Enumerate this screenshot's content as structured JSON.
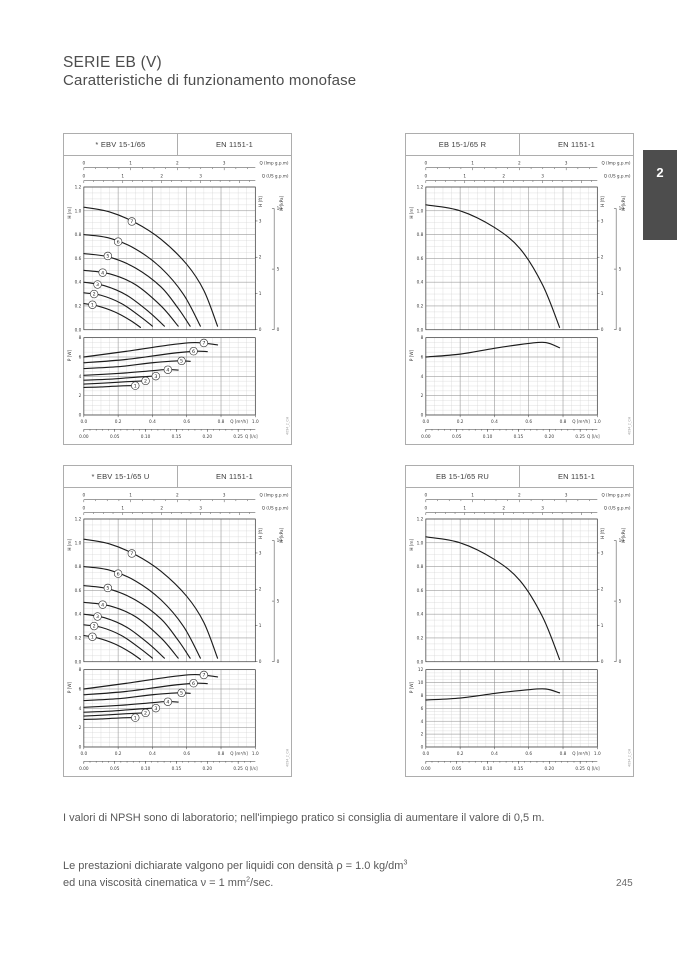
{
  "page": {
    "title": "SERIE EB (V)",
    "subtitle": "Caratteristiche di funzionamento monofase",
    "section_tab": "2",
    "page_number": "245",
    "notes": {
      "npsh": "I valori di NPSH sono di laboratorio; nell'impiego pratico si consiglia di aumentare il valore di 0,5 m.",
      "density_part1": "Le prestazioni dichiarate valgono per liquidi con densità ρ = 1.0 kg/dm",
      "density_sup": "3",
      "viscosity_part1": "ed una viscosità cinematica ν = 1 mm",
      "viscosity_sup": "2",
      "viscosity_part2": "/sec."
    }
  },
  "axes_shared": {
    "top_imp": {
      "label": "Q (Imp g.p.m)",
      "ticks": [
        0,
        1,
        2,
        3
      ],
      "to_m3h": 0.2728
    },
    "top_us": {
      "label": "Q (US g.p.m)",
      "ticks": [
        0,
        1,
        2,
        3
      ],
      "to_m3h": 0.2271
    },
    "right_ft": {
      "label": "H [ft]",
      "ticks": [
        0,
        1,
        2,
        3
      ],
      "to_m": 0.3048
    },
    "right_kpa": {
      "label": "H [kPa]",
      "ticks": [
        0,
        5,
        10
      ],
      "to_m": 0.10197
    },
    "bottom_ls": {
      "label": "Q [l/s]",
      "ticks": [
        0,
        0.05,
        0.1,
        0.15,
        0.2,
        0.25
      ],
      "to_m3h": 3.6
    }
  },
  "chart_data": [
    {
      "type": "line",
      "model": "* EBV 15-1/65",
      "standard": "EN 1151-1",
      "code": "4094_2_CH",
      "x": {
        "label": "Q [m³/h]",
        "min": 0,
        "max": 1.0,
        "ticks": [
          0,
          0.2,
          0.4,
          0.6,
          0.8,
          1.0
        ]
      },
      "y_h": {
        "label": "H [m]",
        "min": 0,
        "max": 1.2,
        "ticks": [
          0,
          0.2,
          0.4,
          0.6,
          0.8,
          1.0,
          1.2
        ]
      },
      "y_p": {
        "label": "P [W]",
        "min": 0,
        "max": 8,
        "ticks": [
          0,
          2,
          4,
          6,
          8
        ]
      },
      "h_curves": [
        {
          "label": "7",
          "points": [
            [
              0,
              1.03
            ],
            [
              0.15,
              0.99
            ],
            [
              0.3,
              0.9
            ],
            [
              0.45,
              0.76
            ],
            [
              0.6,
              0.55
            ],
            [
              0.7,
              0.33
            ],
            [
              0.78,
              0.03
            ]
          ],
          "label_at": [
            0.28,
            0.91
          ]
        },
        {
          "label": "6",
          "points": [
            [
              0,
              0.8
            ],
            [
              0.15,
              0.77
            ],
            [
              0.3,
              0.68
            ],
            [
              0.45,
              0.52
            ],
            [
              0.58,
              0.3
            ],
            [
              0.68,
              0.03
            ]
          ],
          "label_at": [
            0.2,
            0.74
          ]
        },
        {
          "label": "5",
          "points": [
            [
              0,
              0.64
            ],
            [
              0.15,
              0.61
            ],
            [
              0.3,
              0.52
            ],
            [
              0.45,
              0.36
            ],
            [
              0.55,
              0.18
            ],
            [
              0.62,
              0.03
            ]
          ],
          "label_at": [
            0.14,
            0.62
          ]
        },
        {
          "label": "4",
          "points": [
            [
              0,
              0.5
            ],
            [
              0.15,
              0.47
            ],
            [
              0.3,
              0.38
            ],
            [
              0.45,
              0.2
            ],
            [
              0.55,
              0.03
            ]
          ],
          "label_at": [
            0.11,
            0.48
          ]
        },
        {
          "label": "3",
          "points": [
            [
              0,
              0.4
            ],
            [
              0.12,
              0.37
            ],
            [
              0.25,
              0.29
            ],
            [
              0.38,
              0.15
            ],
            [
              0.47,
              0.03
            ]
          ],
          "label_at": [
            0.08,
            0.38
          ]
        },
        {
          "label": "2",
          "points": [
            [
              0,
              0.31
            ],
            [
              0.1,
              0.29
            ],
            [
              0.22,
              0.22
            ],
            [
              0.33,
              0.11
            ],
            [
              0.4,
              0.03
            ]
          ],
          "label_at": [
            0.06,
            0.3
          ]
        },
        {
          "label": "1",
          "points": [
            [
              0,
              0.22
            ],
            [
              0.08,
              0.2
            ],
            [
              0.18,
              0.15
            ],
            [
              0.27,
              0.08
            ],
            [
              0.33,
              0.02
            ]
          ],
          "label_at": [
            0.05,
            0.21
          ]
        }
      ],
      "p_curves": [
        {
          "label": "7",
          "points": [
            [
              0,
              6.0
            ],
            [
              0.25,
              6.6
            ],
            [
              0.5,
              7.25
            ],
            [
              0.65,
              7.5
            ],
            [
              0.78,
              7.25
            ]
          ],
          "label_at": [
            0.7,
            7.45
          ]
        },
        {
          "label": "6",
          "points": [
            [
              0,
              5.4
            ],
            [
              0.25,
              5.75
            ],
            [
              0.5,
              6.35
            ],
            [
              0.65,
              6.6
            ],
            [
              0.72,
              6.55
            ]
          ],
          "label_at": [
            0.64,
            6.6
          ]
        },
        {
          "label": "5",
          "points": [
            [
              0,
              4.8
            ],
            [
              0.2,
              5.0
            ],
            [
              0.4,
              5.4
            ],
            [
              0.55,
              5.6
            ],
            [
              0.62,
              5.55
            ]
          ],
          "label_at": [
            0.57,
            5.6
          ]
        },
        {
          "label": "4",
          "points": [
            [
              0,
              4.1
            ],
            [
              0.2,
              4.3
            ],
            [
              0.35,
              4.5
            ],
            [
              0.48,
              4.7
            ],
            [
              0.55,
              4.65
            ]
          ],
          "label_at": [
            0.49,
            4.68
          ]
        },
        {
          "label": "3",
          "points": [
            [
              0,
              3.6
            ],
            [
              0.15,
              3.7
            ],
            [
              0.3,
              3.9
            ],
            [
              0.43,
              4.05
            ]
          ],
          "label_at": [
            0.42,
            4.02
          ]
        },
        {
          "label": "2",
          "points": [
            [
              0,
              3.2
            ],
            [
              0.12,
              3.3
            ],
            [
              0.25,
              3.45
            ],
            [
              0.38,
              3.55
            ]
          ],
          "label_at": [
            0.36,
            3.53
          ]
        },
        {
          "label": "1",
          "points": [
            [
              0,
              2.85
            ],
            [
              0.1,
              2.9
            ],
            [
              0.2,
              3.0
            ],
            [
              0.32,
              3.05
            ]
          ],
          "label_at": [
            0.3,
            3.03
          ]
        }
      ]
    },
    {
      "type": "line",
      "model": "EB 15-1/65 R",
      "standard": "EN 1151-1",
      "code": "4094_2_CH",
      "x": {
        "label": "Q [m³/h]",
        "min": 0,
        "max": 1.0,
        "ticks": [
          0,
          0.2,
          0.4,
          0.6,
          0.8,
          1.0
        ]
      },
      "y_h": {
        "label": "H [m]",
        "min": 0,
        "max": 1.2,
        "ticks": [
          0,
          0.2,
          0.4,
          0.6,
          0.8,
          1.0,
          1.2
        ]
      },
      "y_p": {
        "label": "P [W]",
        "min": 0,
        "max": 8,
        "ticks": [
          0,
          2,
          4,
          6,
          8
        ]
      },
      "h_curves": [
        {
          "points": [
            [
              0,
              1.05
            ],
            [
              0.2,
              1.0
            ],
            [
              0.4,
              0.86
            ],
            [
              0.55,
              0.68
            ],
            [
              0.68,
              0.38
            ],
            [
              0.78,
              0.02
            ]
          ]
        }
      ],
      "p_curves": [
        {
          "points": [
            [
              0,
              6.0
            ],
            [
              0.2,
              6.3
            ],
            [
              0.4,
              6.9
            ],
            [
              0.6,
              7.4
            ],
            [
              0.7,
              7.5
            ],
            [
              0.78,
              6.95
            ]
          ]
        }
      ]
    },
    {
      "type": "line",
      "model": "* EBV 15-1/65 U",
      "standard": "EN 1151-1",
      "code": "4094_2_CH",
      "x": {
        "label": "Q [m³/h]",
        "min": 0,
        "max": 1.0,
        "ticks": [
          0,
          0.2,
          0.4,
          0.6,
          0.8,
          1.0
        ]
      },
      "y_h": {
        "label": "H [m]",
        "min": 0,
        "max": 1.2,
        "ticks": [
          0,
          0.2,
          0.4,
          0.6,
          0.8,
          1.0,
          1.2
        ]
      },
      "y_p": {
        "label": "P [W]",
        "min": 0,
        "max": 8,
        "ticks": [
          0,
          2,
          4,
          6,
          8
        ]
      },
      "h_curves": [
        {
          "label": "7",
          "points": [
            [
              0,
              1.03
            ],
            [
              0.15,
              0.99
            ],
            [
              0.3,
              0.9
            ],
            [
              0.45,
              0.76
            ],
            [
              0.6,
              0.55
            ],
            [
              0.7,
              0.33
            ],
            [
              0.78,
              0.03
            ]
          ],
          "label_at": [
            0.28,
            0.91
          ]
        },
        {
          "label": "6",
          "points": [
            [
              0,
              0.8
            ],
            [
              0.15,
              0.77
            ],
            [
              0.3,
              0.68
            ],
            [
              0.45,
              0.52
            ],
            [
              0.58,
              0.3
            ],
            [
              0.68,
              0.03
            ]
          ],
          "label_at": [
            0.2,
            0.74
          ]
        },
        {
          "label": "5",
          "points": [
            [
              0,
              0.64
            ],
            [
              0.15,
              0.61
            ],
            [
              0.3,
              0.52
            ],
            [
              0.45,
              0.36
            ],
            [
              0.55,
              0.18
            ],
            [
              0.62,
              0.03
            ]
          ],
          "label_at": [
            0.14,
            0.62
          ]
        },
        {
          "label": "4",
          "points": [
            [
              0,
              0.5
            ],
            [
              0.15,
              0.47
            ],
            [
              0.3,
              0.38
            ],
            [
              0.45,
              0.2
            ],
            [
              0.55,
              0.03
            ]
          ],
          "label_at": [
            0.11,
            0.48
          ]
        },
        {
          "label": "3",
          "points": [
            [
              0,
              0.4
            ],
            [
              0.12,
              0.37
            ],
            [
              0.25,
              0.29
            ],
            [
              0.38,
              0.15
            ],
            [
              0.47,
              0.03
            ]
          ],
          "label_at": [
            0.08,
            0.38
          ]
        },
        {
          "label": "2",
          "points": [
            [
              0,
              0.31
            ],
            [
              0.1,
              0.29
            ],
            [
              0.22,
              0.22
            ],
            [
              0.33,
              0.11
            ],
            [
              0.4,
              0.03
            ]
          ],
          "label_at": [
            0.06,
            0.3
          ]
        },
        {
          "label": "1",
          "points": [
            [
              0,
              0.22
            ],
            [
              0.08,
              0.2
            ],
            [
              0.18,
              0.15
            ],
            [
              0.27,
              0.08
            ],
            [
              0.33,
              0.02
            ]
          ],
          "label_at": [
            0.05,
            0.21
          ]
        }
      ],
      "p_curves": [
        {
          "label": "7",
          "points": [
            [
              0,
              6.0
            ],
            [
              0.25,
              6.6
            ],
            [
              0.5,
              7.25
            ],
            [
              0.65,
              7.5
            ],
            [
              0.78,
              7.25
            ]
          ],
          "label_at": [
            0.7,
            7.45
          ]
        },
        {
          "label": "6",
          "points": [
            [
              0,
              5.4
            ],
            [
              0.25,
              5.75
            ],
            [
              0.5,
              6.35
            ],
            [
              0.65,
              6.6
            ],
            [
              0.72,
              6.55
            ]
          ],
          "label_at": [
            0.64,
            6.6
          ]
        },
        {
          "label": "5",
          "points": [
            [
              0,
              4.8
            ],
            [
              0.2,
              5.0
            ],
            [
              0.4,
              5.4
            ],
            [
              0.55,
              5.6
            ],
            [
              0.62,
              5.55
            ]
          ],
          "label_at": [
            0.57,
            5.6
          ]
        },
        {
          "label": "4",
          "points": [
            [
              0,
              4.1
            ],
            [
              0.2,
              4.3
            ],
            [
              0.35,
              4.5
            ],
            [
              0.48,
              4.7
            ],
            [
              0.55,
              4.65
            ]
          ],
          "label_at": [
            0.49,
            4.68
          ]
        },
        {
          "label": "3",
          "points": [
            [
              0,
              3.6
            ],
            [
              0.15,
              3.7
            ],
            [
              0.3,
              3.9
            ],
            [
              0.43,
              4.05
            ]
          ],
          "label_at": [
            0.42,
            4.02
          ]
        },
        {
          "label": "2",
          "points": [
            [
              0,
              3.2
            ],
            [
              0.12,
              3.3
            ],
            [
              0.25,
              3.45
            ],
            [
              0.38,
              3.55
            ]
          ],
          "label_at": [
            0.36,
            3.53
          ]
        },
        {
          "label": "1",
          "points": [
            [
              0,
              2.85
            ],
            [
              0.1,
              2.9
            ],
            [
              0.2,
              3.0
            ],
            [
              0.32,
              3.05
            ]
          ],
          "label_at": [
            0.3,
            3.03
          ]
        }
      ]
    },
    {
      "type": "line",
      "model": "EB 15-1/65 RU",
      "standard": "EN 1151-1",
      "code": "4094_2_CH",
      "x": {
        "label": "Q [m³/h]",
        "min": 0,
        "max": 1.0,
        "ticks": [
          0,
          0.2,
          0.4,
          0.6,
          0.8,
          1.0
        ]
      },
      "y_h": {
        "label": "H [m]",
        "min": 0,
        "max": 1.2,
        "ticks": [
          0,
          0.2,
          0.4,
          0.6,
          0.8,
          1.0,
          1.2
        ]
      },
      "y_p": {
        "label": "P [W]",
        "min": 0,
        "max": 12,
        "ticks": [
          0,
          2,
          4,
          6,
          8,
          10,
          12
        ]
      },
      "h_curves": [
        {
          "points": [
            [
              0,
              1.05
            ],
            [
              0.2,
              1.0
            ],
            [
              0.4,
              0.86
            ],
            [
              0.55,
              0.68
            ],
            [
              0.68,
              0.38
            ],
            [
              0.78,
              0.02
            ]
          ]
        }
      ],
      "p_curves": [
        {
          "points": [
            [
              0,
              7.3
            ],
            [
              0.2,
              7.6
            ],
            [
              0.4,
              8.3
            ],
            [
              0.6,
              8.9
            ],
            [
              0.7,
              9.0
            ],
            [
              0.78,
              8.4
            ]
          ]
        }
      ]
    }
  ]
}
